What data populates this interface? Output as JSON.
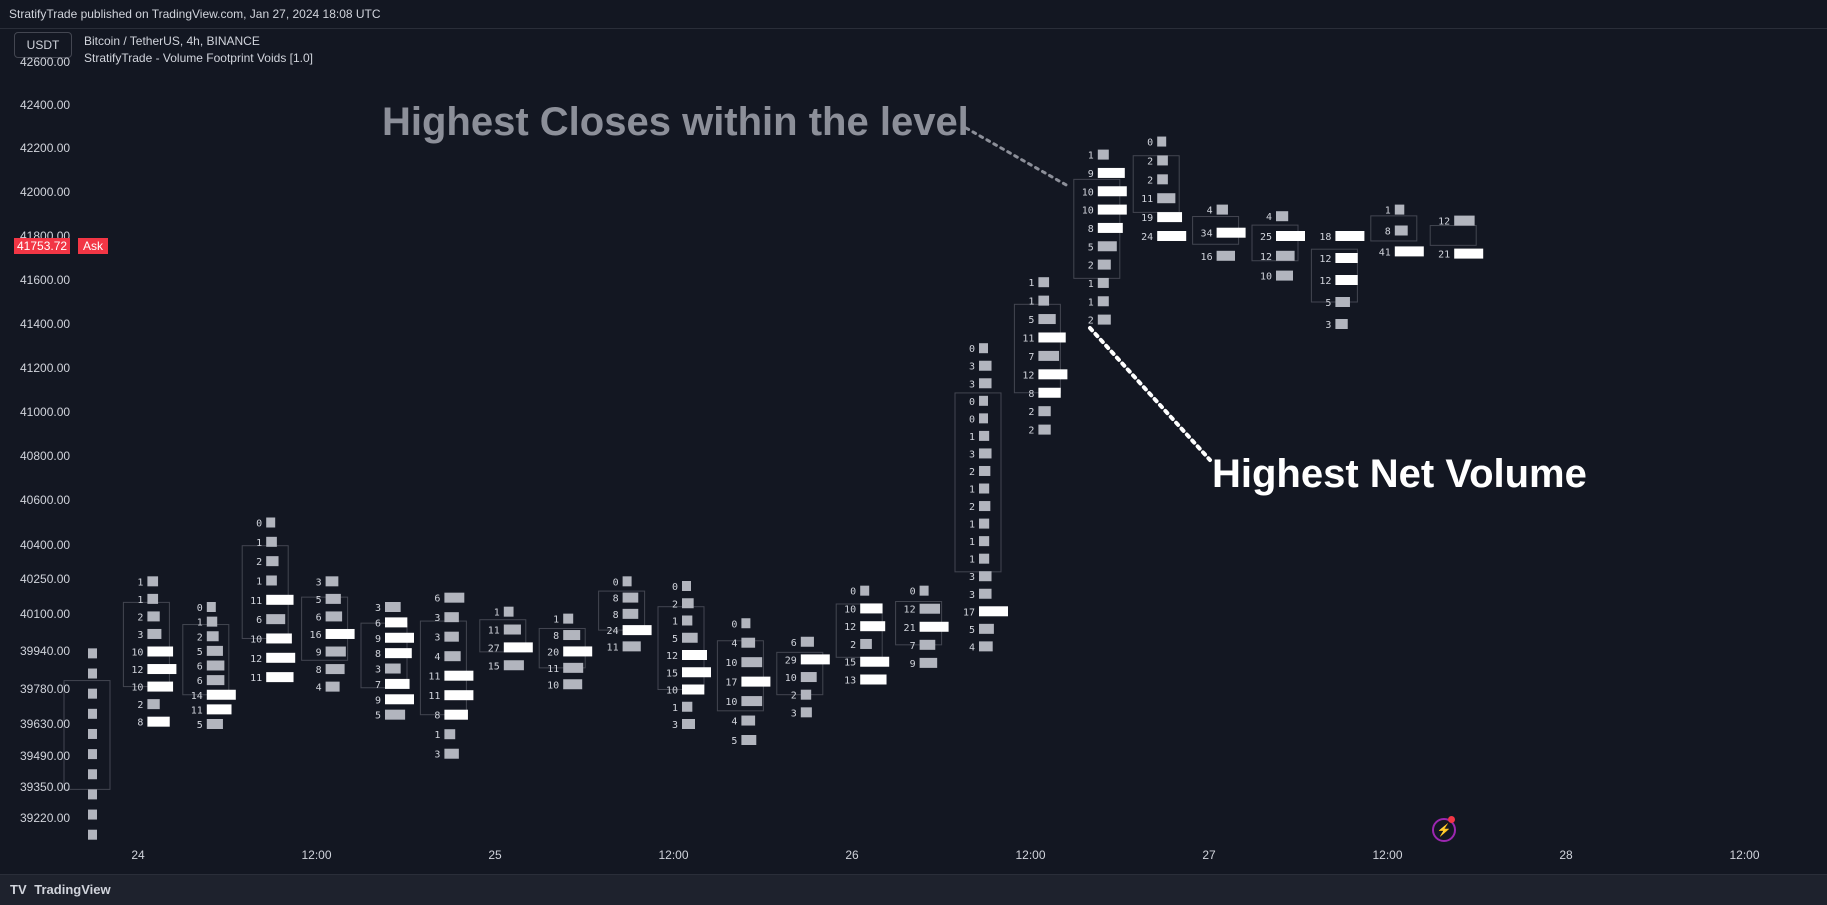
{
  "header": {
    "publisher": "StratifyTrade published on TradingView.com, Jan 27, 2024 18:08 UTC"
  },
  "toolbar": {
    "currency": "USDT"
  },
  "legend": {
    "symbol": "Bitcoin / TetherUS, 4h, BINANCE",
    "indicator": "StratifyTrade - Volume Footprint Voids [1.0]"
  },
  "price_tag": {
    "value": "41753.72",
    "label": "Ask",
    "color": "#f23645"
  },
  "annotations": {
    "closes": "Highest Closes within the level",
    "volume": "Highest Net Volume"
  },
  "footer": {
    "brand": "TradingView"
  },
  "chart_data": {
    "type": "footprint",
    "y_ticks": [
      "42600.00",
      "42400.00",
      "42200.00",
      "42000.00",
      "41800.00",
      "41600.00",
      "41400.00",
      "41200.00",
      "41000.00",
      "40800.00",
      "40600.00",
      "40400.00",
      "40250.00",
      "40100.00",
      "39940.00",
      "39780.00",
      "39630.00",
      "39490.00",
      "39350.00",
      "39220.00"
    ],
    "x_ticks": [
      "24",
      "12:00",
      "25",
      "12:00",
      "26",
      "12:00",
      "27",
      "12:00",
      "28",
      "12:00"
    ],
    "candles": [
      {
        "cells": [
          "",
          "",
          "",
          "",
          "",
          "",
          "",
          "",
          "",
          ""
        ],
        "ylow": 39150,
        "yhigh": 39930
      },
      {
        "cells": [
          "1",
          "1",
          "2",
          "3",
          "10",
          "12",
          "10",
          "2",
          "8"
        ],
        "ylow": 39640,
        "yhigh": 40240
      },
      {
        "cells": [
          "0",
          "1",
          "2",
          "5",
          "6",
          "6",
          "14",
          "11",
          "5"
        ],
        "ylow": 39630,
        "yhigh": 40130
      },
      {
        "cells": [
          "0",
          "1",
          "2",
          "1",
          "11",
          "6",
          "10",
          "12",
          "11"
        ],
        "ylow": 39830,
        "yhigh": 40500
      },
      {
        "cells": [
          "3",
          "5",
          "6",
          "16",
          "9",
          "8",
          "4"
        ],
        "ylow": 39790,
        "yhigh": 40240
      },
      {
        "cells": [
          "3",
          "6",
          "9",
          "8",
          "3",
          "7",
          "9",
          "5"
        ],
        "ylow": 39670,
        "yhigh": 40130
      },
      {
        "cells": [
          "6",
          "3",
          "3",
          "4",
          "11",
          "11",
          "8",
          "1",
          "3"
        ],
        "ylow": 39500,
        "yhigh": 40170
      },
      {
        "cells": [
          "1",
          "11",
          "27",
          "15"
        ],
        "ylow": 39880,
        "yhigh": 40110
      },
      {
        "cells": [
          "1",
          "8",
          "20",
          "11",
          "10"
        ],
        "ylow": 39800,
        "yhigh": 40080
      },
      {
        "cells": [
          "0",
          "8",
          "8",
          "24",
          "11"
        ],
        "ylow": 39960,
        "yhigh": 40240
      },
      {
        "cells": [
          "0",
          "2",
          "1",
          "5",
          "12",
          "15",
          "10",
          "1",
          "3"
        ],
        "ylow": 39630,
        "yhigh": 40220
      },
      {
        "cells": [
          "0",
          "4",
          "10",
          "17",
          "10",
          "4",
          "5"
        ],
        "ylow": 39560,
        "yhigh": 40060
      },
      {
        "cells": [
          "6",
          "29",
          "10",
          "2",
          "3"
        ],
        "ylow": 39680,
        "yhigh": 39980
      },
      {
        "cells": [
          "0",
          "10",
          "12",
          "2",
          "15",
          "13"
        ],
        "ylow": 39820,
        "yhigh": 40200
      },
      {
        "cells": [
          "0",
          "12",
          "21",
          "7",
          "9"
        ],
        "ylow": 39890,
        "yhigh": 40200
      },
      {
        "cells": [
          "0",
          "3",
          "3",
          "0",
          "0",
          "1",
          "3",
          "2",
          "1",
          "2",
          "1",
          "1",
          "1",
          "3",
          "3",
          "17",
          "5",
          "4"
        ],
        "ylow": 39960,
        "yhigh": 41290
      },
      {
        "cells": [
          "1",
          "1",
          "5",
          "11",
          "7",
          "12",
          "8",
          "2",
          "2"
        ],
        "ylow": 40920,
        "yhigh": 41590
      },
      {
        "cells": [
          "1",
          "9",
          "10",
          "10",
          "8",
          "5",
          "2",
          "1",
          "1",
          "2"
        ],
        "ylow": 41420,
        "yhigh": 42170
      },
      {
        "cells": [
          "0",
          "2",
          "2",
          "11",
          "19",
          "24"
        ],
        "ylow": 41800,
        "yhigh": 42230
      },
      {
        "cells": [
          "4",
          "34",
          "16"
        ],
        "ylow": 41710,
        "yhigh": 41920
      },
      {
        "cells": [
          "4",
          "25",
          "12",
          "10"
        ],
        "ylow": 41620,
        "yhigh": 41890
      },
      {
        "cells": [
          "18",
          "12",
          "12",
          "5",
          "3"
        ],
        "ylow": 41400,
        "yhigh": 41800
      },
      {
        "cells": [
          "1",
          "8",
          "41"
        ],
        "ylow": 41730,
        "yhigh": 41920
      },
      {
        "cells": [
          "12",
          "21"
        ],
        "ylow": 41720,
        "yhigh": 41870
      }
    ]
  }
}
